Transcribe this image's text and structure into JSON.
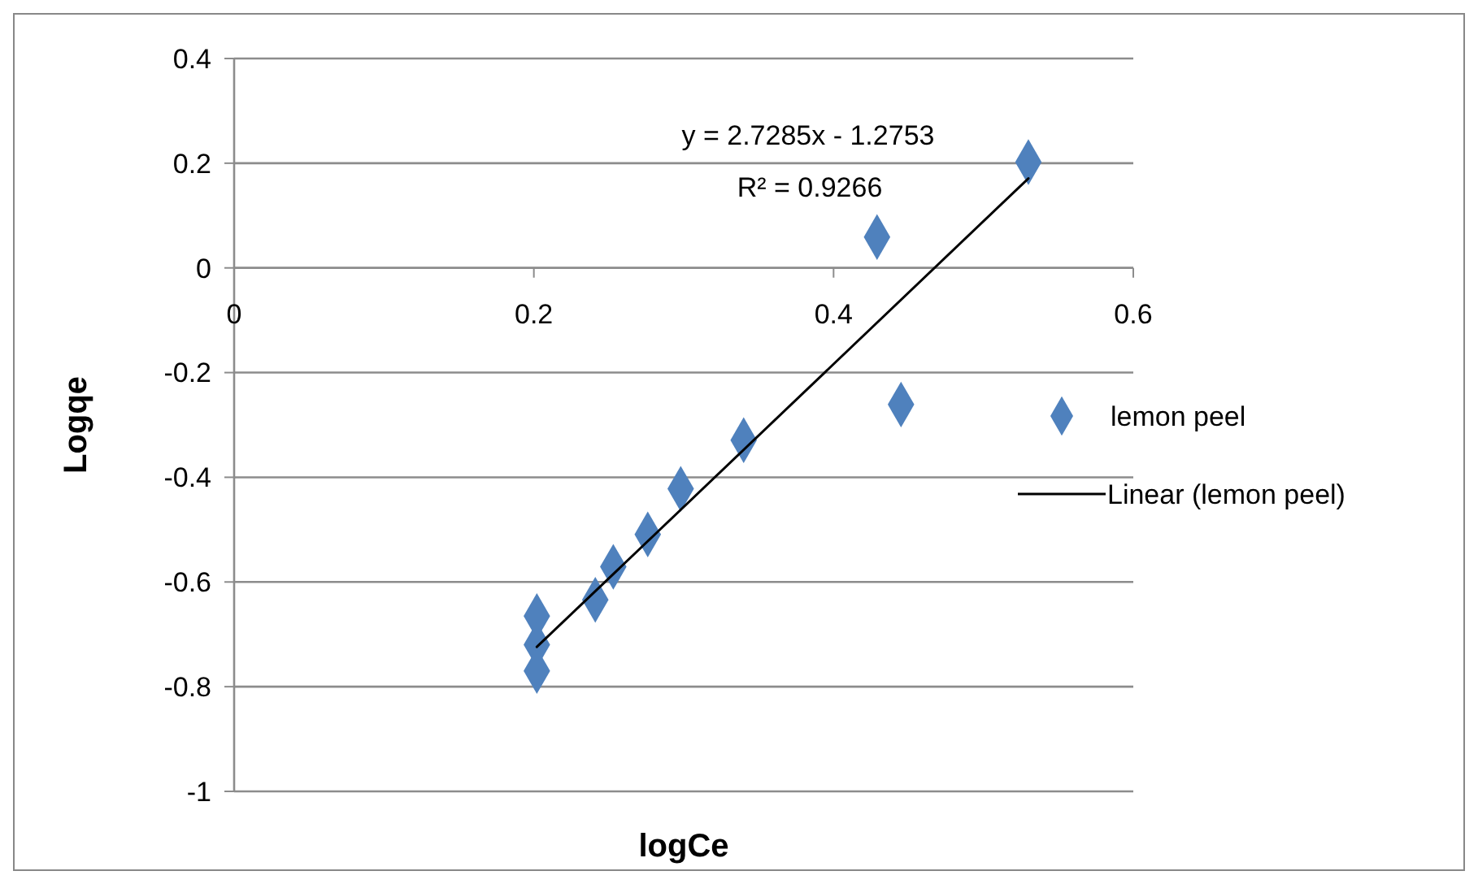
{
  "chart_data": {
    "type": "scatter",
    "xlabel": "logCe",
    "ylabel": "Logqe",
    "xlim": [
      0,
      0.6
    ],
    "ylim": [
      -1,
      0.4
    ],
    "xticks": [
      0,
      0.2,
      0.4,
      0.6
    ],
    "yticks": [
      -1,
      -0.8,
      -0.6,
      -0.4,
      -0.2,
      0,
      0.2,
      0.4
    ],
    "grid": "y",
    "legend": "right",
    "marker": "diamond",
    "annotations": [
      "y = 2.7285x - 1.2753",
      "R² = 0.9266"
    ],
    "series": [
      {
        "name": "lemon peel",
        "color": "#4f81bd",
        "x": [
          0.202,
          0.202,
          0.202,
          0.241,
          0.253,
          0.276,
          0.298,
          0.34,
          0.429,
          0.445,
          0.53
        ],
        "values": [
          -0.665,
          -0.72,
          -0.77,
          -0.634,
          -0.571,
          -0.509,
          -0.422,
          -0.329,
          0.059,
          -0.261,
          0.202
        ]
      },
      {
        "name": "Linear (lemon peel)",
        "type": "line",
        "color": "#000000",
        "marker": "none",
        "line_style": "solid",
        "x": [
          0.202,
          0.53
        ],
        "values": [
          -0.724,
          0.171
        ]
      }
    ]
  }
}
